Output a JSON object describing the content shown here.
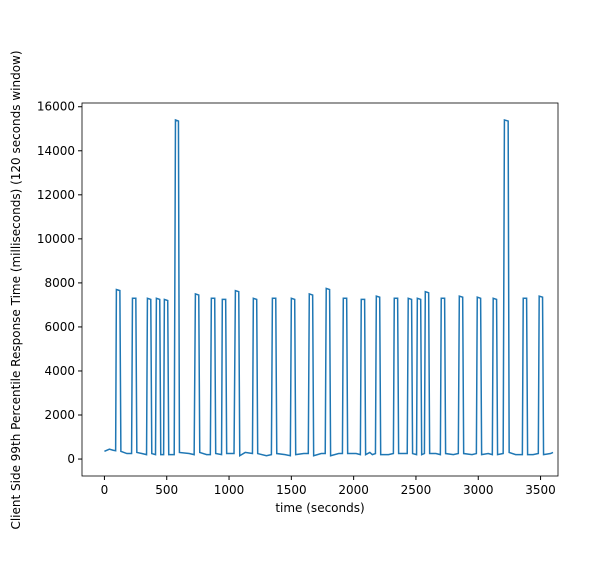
{
  "chart_data": {
    "type": "line",
    "xlabel": "time (seconds)",
    "ylabel": "Client Side 99th Percentile Response Time (milliseconds) (120 seconds window)",
    "xlim": [
      -180,
      3640
    ],
    "ylim": [
      -770,
      16170
    ],
    "xticks": [
      0,
      500,
      1000,
      1500,
      2000,
      2500,
      3000,
      3500
    ],
    "yticks": [
      0,
      2000,
      4000,
      6000,
      8000,
      10000,
      12000,
      14000,
      16000
    ],
    "series": [
      {
        "color": "#1f77b4",
        "x": [
          0,
          40,
          70,
          90,
          96,
          124,
          132,
          180,
          218,
          225,
          252,
          260,
          300,
          338,
          345,
          372,
          380,
          410,
          417,
          444,
          452,
          475,
          481,
          508,
          516,
          560,
          570,
          594,
          602,
          680,
          720,
          730,
          757,
          765,
          820,
          850,
          858,
          885,
          893,
          940,
          946,
          973,
          981,
          1040,
          1051,
          1078,
          1086,
          1130,
          1188,
          1195,
          1222,
          1230,
          1300,
          1340,
          1348,
          1375,
          1383,
          1450,
          1492,
          1500,
          1527,
          1535,
          1600,
          1636,
          1644,
          1671,
          1679,
          1740,
          1772,
          1780,
          1807,
          1815,
          1880,
          1910,
          1917,
          1944,
          1952,
          2020,
          2054,
          2061,
          2088,
          2096,
          2130,
          2150,
          2175,
          2182,
          2209,
          2217,
          2280,
          2319,
          2326,
          2353,
          2361,
          2430,
          2438,
          2465,
          2473,
          2505,
          2511,
          2538,
          2546,
          2568,
          2575,
          2602,
          2610,
          2660,
          2696,
          2703,
          2730,
          2738,
          2800,
          2840,
          2848,
          2875,
          2883,
          2950,
          2985,
          2992,
          3019,
          3027,
          3080,
          3113,
          3120,
          3147,
          3155,
          3200,
          3210,
          3240,
          3248,
          3300,
          3354,
          3361,
          3388,
          3396,
          3440,
          3482,
          3489,
          3516,
          3524,
          3580,
          3600
        ],
        "values": [
          350,
          450,
          400,
          380,
          7700,
          7650,
          350,
          250,
          250,
          7300,
          7300,
          300,
          250,
          200,
          7300,
          7250,
          250,
          200,
          7300,
          7250,
          200,
          200,
          7250,
          7200,
          200,
          200,
          15400,
          15350,
          300,
          250,
          200,
          7500,
          7450,
          300,
          200,
          200,
          7300,
          7300,
          250,
          200,
          7250,
          7250,
          250,
          250,
          7650,
          7600,
          150,
          300,
          250,
          7300,
          7250,
          250,
          150,
          200,
          7300,
          7300,
          250,
          200,
          150,
          7300,
          7250,
          200,
          250,
          250,
          7500,
          7450,
          150,
          250,
          250,
          7750,
          7700,
          150,
          250,
          250,
          7300,
          7300,
          250,
          250,
          200,
          7250,
          7250,
          200,
          300,
          200,
          250,
          7400,
          7350,
          200,
          200,
          250,
          7300,
          7300,
          250,
          250,
          7300,
          7250,
          250,
          200,
          7300,
          7250,
          200,
          250,
          7600,
          7550,
          250,
          250,
          200,
          7300,
          7300,
          250,
          200,
          250,
          7400,
          7350,
          250,
          200,
          250,
          7350,
          7300,
          200,
          250,
          200,
          7300,
          7250,
          200,
          250,
          15400,
          15350,
          300,
          200,
          200,
          7300,
          7300,
          200,
          200,
          250,
          7400,
          7350,
          200,
          250,
          300
        ]
      }
    ]
  }
}
